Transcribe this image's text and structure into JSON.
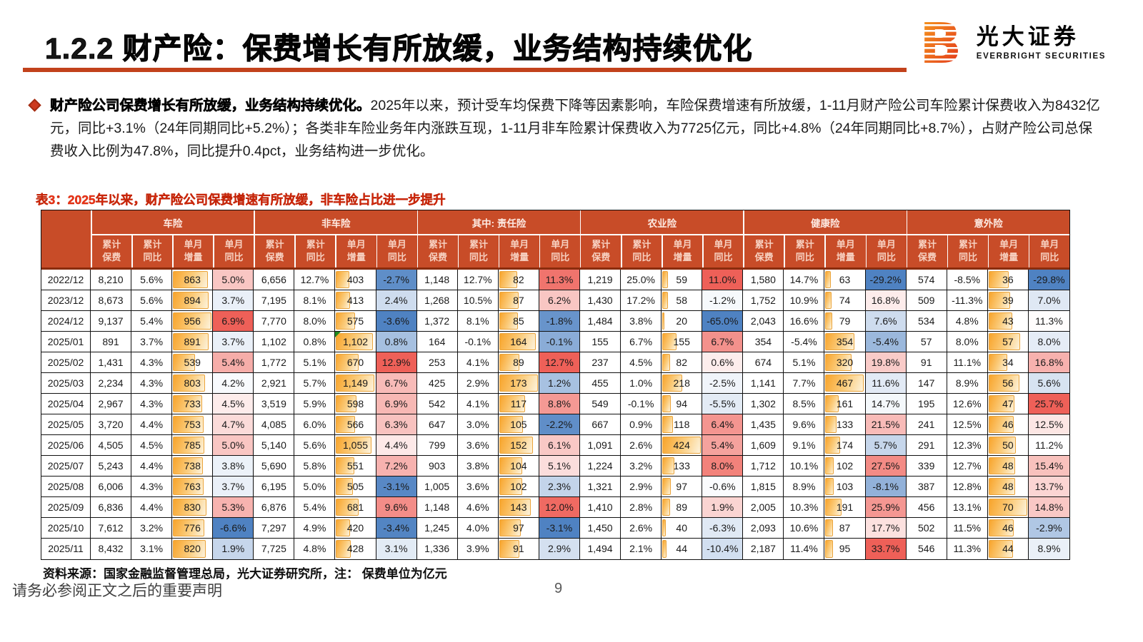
{
  "slide": {
    "section_title": "1.2.2 财产险：保费增长有所放缓，业务结构持续优化",
    "page_number": "9",
    "disclaimer": "请务必参阅正文之后的重要声明"
  },
  "logo": {
    "cn": "光大证券",
    "en": "EVERBRIGHT SECURITIES"
  },
  "bullet": {
    "lead": "财产险公司保费增长有所放缓，业务结构持续优化。",
    "body": "2025年以来，预计受车均保费下降等因素影响，车险保费增速有所放缓，1-11月财产险公司车险累计保费收入为8432亿元，同比+3.1%（24年同期同比+5.2%）；各类非车险业务年内涨跌互现，1-11月非车险累计保费收入为7725亿元，同比+4.8%（24年同期同比+8.7%），占财产险公司总保费收入比例为47.8%，同比提升0.4pct，业务结构进一步优化。"
  },
  "table": {
    "title": "表3：2025年以来，财产险公司保费增速有所放缓，非车险占比进一步提升",
    "source": "资料来源：国家金融监督管理总局，光大证券研究所，注： 保费单位为亿元",
    "groups": [
      "车险",
      "非车险",
      "其中: 责任险",
      "农业险",
      "健康险",
      "意外险"
    ],
    "subheaders": [
      "累计\n保费",
      "累计\n同比",
      "单月\n增量",
      "单月\n同比"
    ]
  },
  "colors": {
    "header_bg": "#c84c28",
    "header_rule": "#8a2c0d",
    "scale_red": "#ee6058",
    "scale_blue": "#4f82c2",
    "bar_orange": "#f8a42b",
    "title_rule": "#c2421c"
  },
  "chart_data": {
    "type": "table",
    "column_pattern_per_group": [
      "累计保费",
      "累计同比",
      "单月增量(databar)",
      "单月同比(colorscale)"
    ],
    "comment_marker_cell": {
      "row_date": "2025/01",
      "value_index": 6
    },
    "rows": [
      {
        "date": "2022/12",
        "values": [
          "8,210",
          "5.6%",
          "863",
          "5.0%",
          "6,656",
          "12.7%",
          "403",
          "-2.7%",
          "1,148",
          "12.7%",
          "82",
          "11.3%",
          "1,219",
          "25.0%",
          "59",
          "11.0%",
          "1,580",
          "14.7%",
          "63",
          "-29.2%",
          "574",
          "-8.5%",
          "36",
          "-29.8%"
        ]
      },
      {
        "date": "2023/12",
        "values": [
          "8,673",
          "5.6%",
          "894",
          "3.7%",
          "7,195",
          "8.1%",
          "413",
          "2.4%",
          "1,268",
          "10.5%",
          "87",
          "6.2%",
          "1,430",
          "17.2%",
          "58",
          "-1.2%",
          "1,752",
          "10.9%",
          "74",
          "16.8%",
          "509",
          "-11.3%",
          "39",
          "7.0%"
        ]
      },
      {
        "date": "2024/12",
        "values": [
          "9,137",
          "5.4%",
          "956",
          "6.9%",
          "7,770",
          "8.0%",
          "575",
          "-3.6%",
          "1,372",
          "8.1%",
          "85",
          "-1.8%",
          "1,484",
          "3.8%",
          "20",
          "-65.0%",
          "2,043",
          "16.6%",
          "79",
          "7.6%",
          "534",
          "4.8%",
          "43",
          "11.3%"
        ]
      },
      {
        "date": "2025/01",
        "values": [
          "891",
          "3.7%",
          "891",
          "3.7%",
          "1,102",
          "0.8%",
          "1,102",
          "0.8%",
          "164",
          "-0.1%",
          "164",
          "-0.1%",
          "155",
          "6.7%",
          "155",
          "6.7%",
          "354",
          "-5.4%",
          "354",
          "-5.4%",
          "57",
          "8.0%",
          "57",
          "8.0%"
        ]
      },
      {
        "date": "2025/02",
        "values": [
          "1,431",
          "4.3%",
          "539",
          "5.4%",
          "1,772",
          "5.1%",
          "670",
          "12.9%",
          "253",
          "4.1%",
          "89",
          "12.7%",
          "237",
          "4.5%",
          "82",
          "0.6%",
          "674",
          "5.1%",
          "320",
          "19.8%",
          "91",
          "11.1%",
          "34",
          "16.8%"
        ]
      },
      {
        "date": "2025/03",
        "values": [
          "2,234",
          "4.3%",
          "803",
          "4.2%",
          "2,921",
          "5.7%",
          "1,149",
          "6.7%",
          "425",
          "2.9%",
          "173",
          "1.2%",
          "455",
          "1.0%",
          "218",
          "-2.5%",
          "1,141",
          "7.7%",
          "467",
          "11.6%",
          "147",
          "8.9%",
          "56",
          "5.6%"
        ]
      },
      {
        "date": "2025/04",
        "values": [
          "2,967",
          "4.3%",
          "733",
          "4.5%",
          "3,519",
          "5.9%",
          "598",
          "6.9%",
          "542",
          "4.1%",
          "117",
          "8.8%",
          "549",
          "-0.1%",
          "94",
          "-5.5%",
          "1,302",
          "8.5%",
          "161",
          "14.7%",
          "195",
          "12.6%",
          "47",
          "25.7%"
        ]
      },
      {
        "date": "2025/05",
        "values": [
          "3,720",
          "4.4%",
          "753",
          "4.7%",
          "4,085",
          "6.0%",
          "566",
          "6.3%",
          "647",
          "3.0%",
          "105",
          "-2.2%",
          "667",
          "0.9%",
          "118",
          "6.4%",
          "1,435",
          "9.6%",
          "133",
          "21.5%",
          "241",
          "12.5%",
          "46",
          "12.5%"
        ]
      },
      {
        "date": "2025/06",
        "values": [
          "4,505",
          "4.5%",
          "785",
          "5.0%",
          "5,140",
          "5.6%",
          "1,055",
          "4.4%",
          "799",
          "3.6%",
          "152",
          "6.1%",
          "1,091",
          "2.6%",
          "424",
          "5.4%",
          "1,609",
          "9.1%",
          "174",
          "5.7%",
          "291",
          "12.3%",
          "50",
          "11.2%"
        ]
      },
      {
        "date": "2025/07",
        "values": [
          "5,243",
          "4.4%",
          "738",
          "3.8%",
          "5,690",
          "5.8%",
          "551",
          "7.2%",
          "903",
          "3.8%",
          "104",
          "5.1%",
          "1,224",
          "3.2%",
          "133",
          "8.0%",
          "1,712",
          "10.1%",
          "102",
          "27.5%",
          "339",
          "12.7%",
          "48",
          "15.4%"
        ]
      },
      {
        "date": "2025/08",
        "values": [
          "6,006",
          "4.3%",
          "763",
          "3.7%",
          "6,195",
          "5.0%",
          "505",
          "-3.1%",
          "1,005",
          "3.6%",
          "102",
          "2.3%",
          "1,321",
          "2.9%",
          "97",
          "-0.6%",
          "1,815",
          "8.9%",
          "103",
          "-8.1%",
          "387",
          "12.8%",
          "48",
          "13.7%"
        ]
      },
      {
        "date": "2025/09",
        "values": [
          "6,836",
          "4.4%",
          "830",
          "5.3%",
          "6,876",
          "5.4%",
          "681",
          "9.6%",
          "1,148",
          "4.6%",
          "143",
          "12.0%",
          "1,410",
          "2.8%",
          "89",
          "1.9%",
          "2,005",
          "10.3%",
          "191",
          "25.9%",
          "456",
          "13.1%",
          "70",
          "14.8%"
        ]
      },
      {
        "date": "2025/10",
        "values": [
          "7,612",
          "3.2%",
          "776",
          "-6.6%",
          "7,297",
          "4.9%",
          "420",
          "-3.4%",
          "1,245",
          "4.0%",
          "97",
          "-3.1%",
          "1,450",
          "2.6%",
          "40",
          "-6.3%",
          "2,093",
          "10.6%",
          "87",
          "17.7%",
          "502",
          "11.5%",
          "46",
          "-2.9%"
        ]
      },
      {
        "date": "2025/11",
        "values": [
          "8,432",
          "3.1%",
          "820",
          "1.9%",
          "7,725",
          "4.8%",
          "428",
          "3.1%",
          "1,336",
          "3.9%",
          "91",
          "2.9%",
          "1,494",
          "2.1%",
          "44",
          "-10.4%",
          "2,187",
          "11.4%",
          "95",
          "33.7%",
          "546",
          "11.3%",
          "44",
          "8.9%"
        ]
      }
    ]
  }
}
